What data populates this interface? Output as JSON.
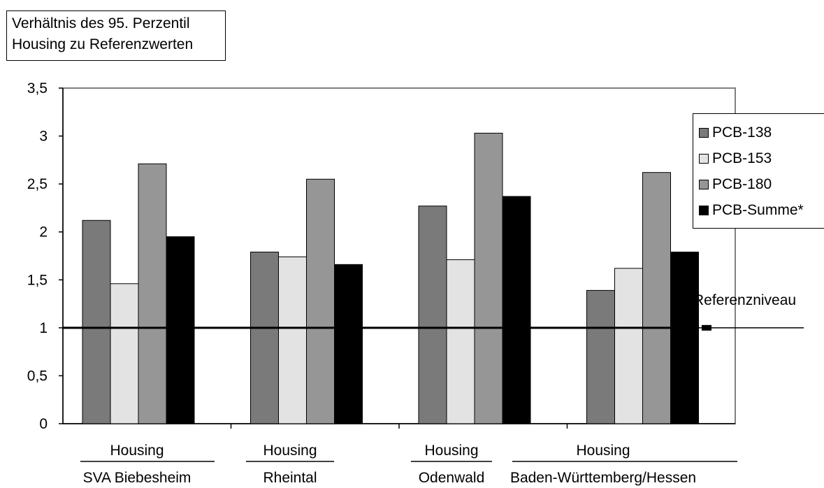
{
  "title_lines": [
    "Verhältnis des 95. Perzentil",
    "Housing zu Referenzwerten"
  ],
  "reference_label": "Referenzniveau",
  "chart_data": {
    "type": "bar",
    "categories": [
      {
        "line1": "Housing",
        "line2": "SVA Biebesheim"
      },
      {
        "line1": "Housing",
        "line2": "Rheintal"
      },
      {
        "line1": "Housing",
        "line2": "Odenwald"
      },
      {
        "line1": "Housing",
        "line2": "Baden-Württemberg/Hessen"
      }
    ],
    "series": [
      {
        "name": "PCB-138",
        "color": "#7a7a7a",
        "values": [
          2.12,
          1.79,
          2.27,
          1.39
        ]
      },
      {
        "name": "PCB-153",
        "color": "#e3e3e3",
        "values": [
          1.46,
          1.74,
          1.71,
          1.62
        ]
      },
      {
        "name": "PCB-180",
        "color": "#969696",
        "values": [
          2.71,
          2.55,
          3.03,
          2.62
        ]
      },
      {
        "name": "PCB-Summe*",
        "color": "#000000",
        "values": [
          1.95,
          1.66,
          2.37,
          1.79
        ]
      }
    ],
    "reference_value": 1,
    "ylim": [
      0,
      3.5
    ],
    "yticks": [
      "0",
      "0,5",
      "1",
      "1,5",
      "2",
      "2,5",
      "3",
      "3,5"
    ],
    "ytick_values": [
      0,
      0.5,
      1,
      1.5,
      2,
      2.5,
      3,
      3.5
    ],
    "grid": false,
    "legend_position": "right"
  }
}
